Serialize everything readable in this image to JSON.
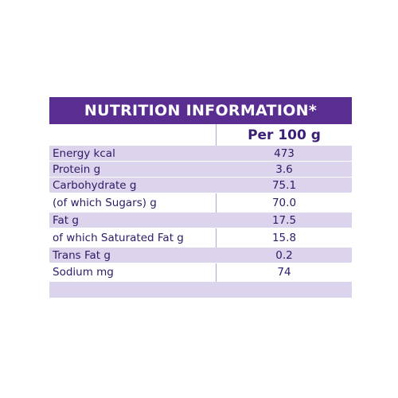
{
  "title": "NUTRITION INFORMATION*",
  "column_header": "Per 100 g",
  "rows": [
    {
      "label": "Energy kcal",
      "value": "473"
    },
    {
      "label": "Protein g",
      "value": "3.6"
    },
    {
      "label": "Carbohydrate g",
      "value": "75.1"
    },
    {
      "label": "(of which Sugars) g",
      "value": "70.0"
    },
    {
      "label": "Fat g",
      "value": "17.5"
    },
    {
      "label": "of which Saturated Fat g",
      "value": "15.8"
    },
    {
      "label": "Trans Fat g",
      "value": "0.2"
    },
    {
      "label": "Sodium mg",
      "value": "74"
    }
  ],
  "colors": {
    "header_bg": "#5a2d91",
    "row_shade": "#dcd3ec",
    "text": "#2e1a66"
  }
}
